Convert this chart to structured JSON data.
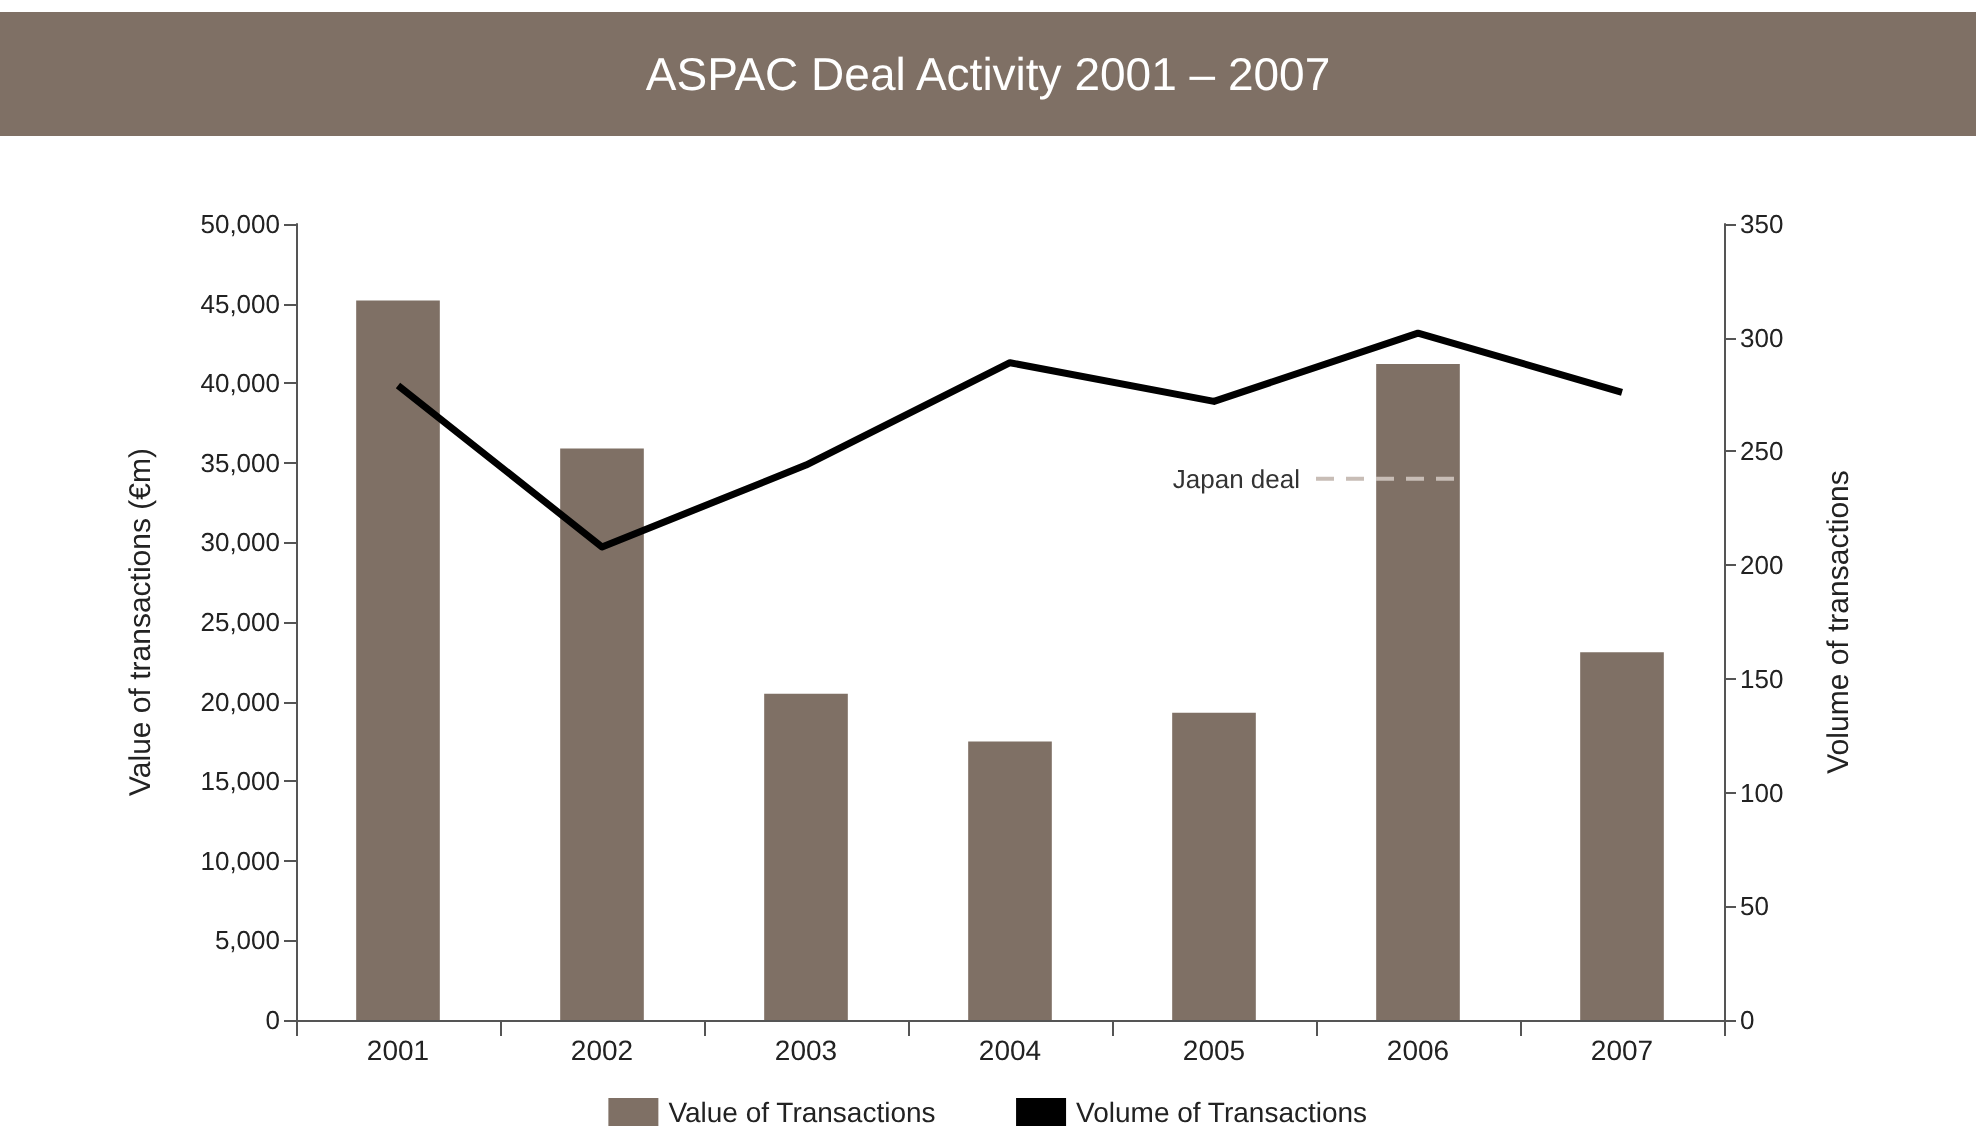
{
  "chart_data": {
    "type": "bar",
    "title": "ASPAC Deal Activity 2001 – 2007",
    "ylabel": "Value of transactions (€m)",
    "y2label": "Volume of transactions",
    "categories": [
      "2001",
      "2002",
      "2003",
      "2004",
      "2005",
      "2006",
      "2007"
    ],
    "series": [
      {
        "name": "Value of Transactions",
        "color": "#7f7065",
        "values": [
          45200,
          35900,
          20500,
          17500,
          19300,
          41200,
          23100
        ]
      },
      {
        "name": "Volume of Transactions",
        "type": "line",
        "axis": "y2",
        "color": "#000000",
        "values": [
          279,
          208,
          244,
          289,
          272,
          302,
          276
        ]
      }
    ],
    "ylim": [
      0,
      50000
    ],
    "yticks": [
      0,
      {
        "value": 5000,
        "label": "5,000"
      },
      {
        "value": 10000,
        "label": "10,000"
      },
      {
        "value": 15000,
        "label": "15,000"
      },
      {
        "value": 20000,
        "label": "20,000"
      },
      {
        "value": 25000,
        "label": "25,000"
      },
      {
        "value": 30000,
        "label": "30,000"
      },
      {
        "value": 35000,
        "label": "35,000"
      },
      {
        "value": 40000,
        "label": "40,000"
      },
      {
        "value": 45000,
        "label": "45,000"
      },
      {
        "value": 50000,
        "label": "50,000"
      }
    ],
    "y2lim": [
      0,
      350
    ],
    "y2ticks": [
      0,
      50,
      100,
      150,
      200,
      250,
      300,
      350
    ],
    "ref_lines": [
      {
        "axis": "y",
        "value": 34000,
        "label": "Japan deal",
        "color": "#c8bdb6",
        "line_style": "dashed"
      }
    ],
    "grid": false,
    "legend": "bottom",
    "marker": "none",
    "line_style": "solid"
  }
}
